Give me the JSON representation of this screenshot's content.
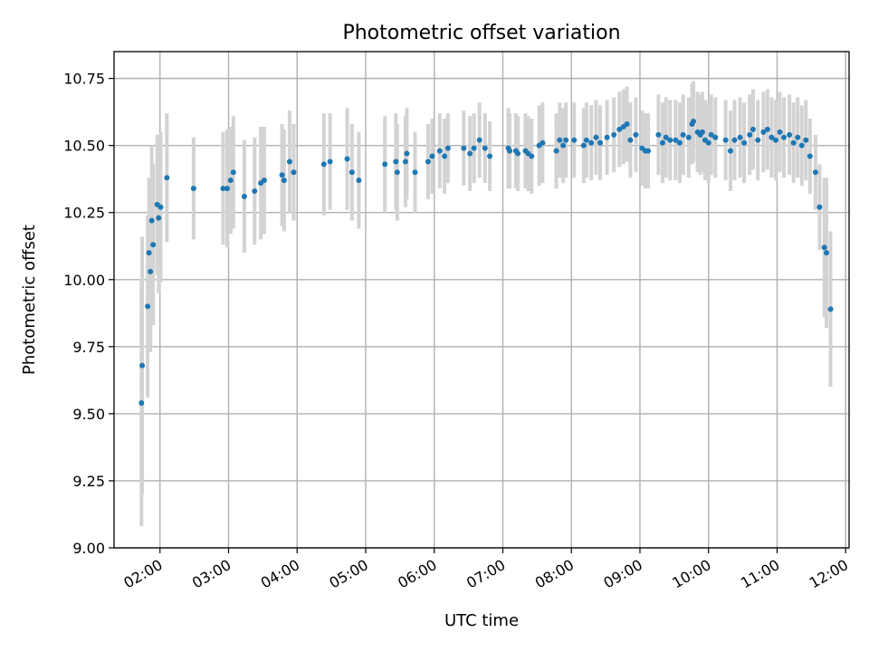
{
  "chart_data": {
    "type": "scatter",
    "title": "Photometric offset variation",
    "xlabel": "UTC time",
    "ylabel": "Photometric offset",
    "x_unit": "hours UTC",
    "xlim": [
      1.33,
      12.05
    ],
    "ylim": [
      9.0,
      10.85
    ],
    "grid": true,
    "x_ticks": [
      {
        "value": 2,
        "label": "02:00"
      },
      {
        "value": 3,
        "label": "03:00"
      },
      {
        "value": 4,
        "label": "04:00"
      },
      {
        "value": 5,
        "label": "05:00"
      },
      {
        "value": 6,
        "label": "06:00"
      },
      {
        "value": 7,
        "label": "07:00"
      },
      {
        "value": 8,
        "label": "08:00"
      },
      {
        "value": 9,
        "label": "09:00"
      },
      {
        "value": 10,
        "label": "10:00"
      },
      {
        "value": 11,
        "label": "11:00"
      },
      {
        "value": 12,
        "label": "12:00"
      }
    ],
    "y_ticks": [
      {
        "value": 9.0,
        "label": "9.00"
      },
      {
        "value": 9.25,
        "label": "9.25"
      },
      {
        "value": 9.5,
        "label": "9.50"
      },
      {
        "value": 9.75,
        "label": "9.75"
      },
      {
        "value": 10.0,
        "label": "10.00"
      },
      {
        "value": 10.25,
        "label": "10.25"
      },
      {
        "value": 10.5,
        "label": "10.50"
      },
      {
        "value": 10.75,
        "label": "10.75"
      }
    ],
    "colors": {
      "point": "#1f77b4",
      "errorbar": "#d3d3d3",
      "grid": "#b0b0b0"
    },
    "series": [
      {
        "name": "offset",
        "fields": [
          "x_hour",
          "y",
          "yerr"
        ],
        "points": [
          [
            1.73,
            9.54,
            0.46
          ],
          [
            1.74,
            9.68,
            0.48
          ],
          [
            1.82,
            9.9,
            0.34
          ],
          [
            1.84,
            10.1,
            0.28
          ],
          [
            1.86,
            10.03,
            0.3
          ],
          [
            1.88,
            10.22,
            0.28
          ],
          [
            1.9,
            10.13,
            0.3
          ],
          [
            1.96,
            10.28,
            0.26
          ],
          [
            1.98,
            10.23,
            0.28
          ],
          [
            2.01,
            10.27,
            0.28
          ],
          [
            2.1,
            10.38,
            0.24
          ],
          [
            2.49,
            10.34,
            0.19
          ],
          [
            2.98,
            10.34,
            0.22
          ],
          [
            2.92,
            10.34,
            0.21
          ],
          [
            3.03,
            10.37,
            0.2
          ],
          [
            3.07,
            10.4,
            0.21
          ],
          [
            3.23,
            10.31,
            0.21
          ],
          [
            3.38,
            10.33,
            0.2
          ],
          [
            3.47,
            10.36,
            0.21
          ],
          [
            3.52,
            10.37,
            0.2
          ],
          [
            3.78,
            10.39,
            0.19
          ],
          [
            3.81,
            10.37,
            0.19
          ],
          [
            3.89,
            10.44,
            0.19
          ],
          [
            3.95,
            10.4,
            0.18
          ],
          [
            4.39,
            10.43,
            0.19
          ],
          [
            4.48,
            10.44,
            0.18
          ],
          [
            4.73,
            10.45,
            0.19
          ],
          [
            4.8,
            10.4,
            0.18
          ],
          [
            4.9,
            10.37,
            0.18
          ],
          [
            5.28,
            10.43,
            0.18
          ],
          [
            5.44,
            10.44,
            0.18
          ],
          [
            5.46,
            10.4,
            0.18
          ],
          [
            5.58,
            10.44,
            0.17
          ],
          [
            5.6,
            10.47,
            0.17
          ],
          [
            5.72,
            10.4,
            0.15
          ],
          [
            5.91,
            10.44,
            0.14
          ],
          [
            5.97,
            10.46,
            0.14
          ],
          [
            6.08,
            10.48,
            0.14
          ],
          [
            6.15,
            10.46,
            0.14
          ],
          [
            6.2,
            10.49,
            0.13
          ],
          [
            6.43,
            10.49,
            0.14
          ],
          [
            6.52,
            10.47,
            0.14
          ],
          [
            6.58,
            10.49,
            0.13
          ],
          [
            6.66,
            10.52,
            0.14
          ],
          [
            6.74,
            10.49,
            0.13
          ],
          [
            6.81,
            10.46,
            0.13
          ],
          [
            7.08,
            10.49,
            0.15
          ],
          [
            7.1,
            10.48,
            0.14
          ],
          [
            7.19,
            10.48,
            0.14
          ],
          [
            7.22,
            10.47,
            0.14
          ],
          [
            7.33,
            10.48,
            0.14
          ],
          [
            7.37,
            10.47,
            0.14
          ],
          [
            7.42,
            10.46,
            0.14
          ],
          [
            7.53,
            10.5,
            0.15
          ],
          [
            7.58,
            10.51,
            0.15
          ],
          [
            7.78,
            10.48,
            0.14
          ],
          [
            7.83,
            10.52,
            0.14
          ],
          [
            7.88,
            10.5,
            0.14
          ],
          [
            7.92,
            10.52,
            0.14
          ],
          [
            8.04,
            10.52,
            0.14
          ],
          [
            8.18,
            10.5,
            0.14
          ],
          [
            8.22,
            10.52,
            0.14
          ],
          [
            8.29,
            10.51,
            0.14
          ],
          [
            8.36,
            10.53,
            0.14
          ],
          [
            8.42,
            10.51,
            0.14
          ],
          [
            8.52,
            10.53,
            0.14
          ],
          [
            8.62,
            10.54,
            0.14
          ],
          [
            8.7,
            10.56,
            0.14
          ],
          [
            8.76,
            10.57,
            0.14
          ],
          [
            8.81,
            10.58,
            0.14
          ],
          [
            8.86,
            10.52,
            0.14
          ],
          [
            8.94,
            10.54,
            0.14
          ],
          [
            9.03,
            10.49,
            0.14
          ],
          [
            9.08,
            10.48,
            0.14
          ],
          [
            9.12,
            10.48,
            0.14
          ],
          [
            9.27,
            10.54,
            0.15
          ],
          [
            9.33,
            10.51,
            0.15
          ],
          [
            9.38,
            10.53,
            0.15
          ],
          [
            9.44,
            10.52,
            0.15
          ],
          [
            9.52,
            10.52,
            0.15
          ],
          [
            9.58,
            10.51,
            0.15
          ],
          [
            9.63,
            10.54,
            0.15
          ],
          [
            9.71,
            10.53,
            0.15
          ],
          [
            9.76,
            10.58,
            0.15
          ],
          [
            9.78,
            10.59,
            0.15
          ],
          [
            9.84,
            10.55,
            0.15
          ],
          [
            9.88,
            10.54,
            0.15
          ],
          [
            9.91,
            10.55,
            0.15
          ],
          [
            9.95,
            10.52,
            0.15
          ],
          [
            10.0,
            10.51,
            0.15
          ],
          [
            10.04,
            10.54,
            0.15
          ],
          [
            10.1,
            10.53,
            0.15
          ],
          [
            10.25,
            10.52,
            0.15
          ],
          [
            10.32,
            10.48,
            0.15
          ],
          [
            10.38,
            10.52,
            0.15
          ],
          [
            10.46,
            10.53,
            0.15
          ],
          [
            10.52,
            10.51,
            0.15
          ],
          [
            10.6,
            10.54,
            0.15
          ],
          [
            10.65,
            10.56,
            0.15
          ],
          [
            10.72,
            10.52,
            0.15
          ],
          [
            10.8,
            10.55,
            0.15
          ],
          [
            10.86,
            10.56,
            0.15
          ],
          [
            10.92,
            10.53,
            0.15
          ],
          [
            10.98,
            10.52,
            0.15
          ],
          [
            11.04,
            10.55,
            0.15
          ],
          [
            11.1,
            10.53,
            0.15
          ],
          [
            11.18,
            10.54,
            0.15
          ],
          [
            11.24,
            10.51,
            0.15
          ],
          [
            11.3,
            10.53,
            0.15
          ],
          [
            11.36,
            10.5,
            0.15
          ],
          [
            11.42,
            10.52,
            0.15
          ],
          [
            11.48,
            10.46,
            0.14
          ],
          [
            11.56,
            10.4,
            0.14
          ],
          [
            11.62,
            10.27,
            0.16
          ],
          [
            11.69,
            10.12,
            0.26
          ],
          [
            11.72,
            10.1,
            0.28
          ],
          [
            11.78,
            9.89,
            0.29
          ]
        ]
      }
    ]
  }
}
